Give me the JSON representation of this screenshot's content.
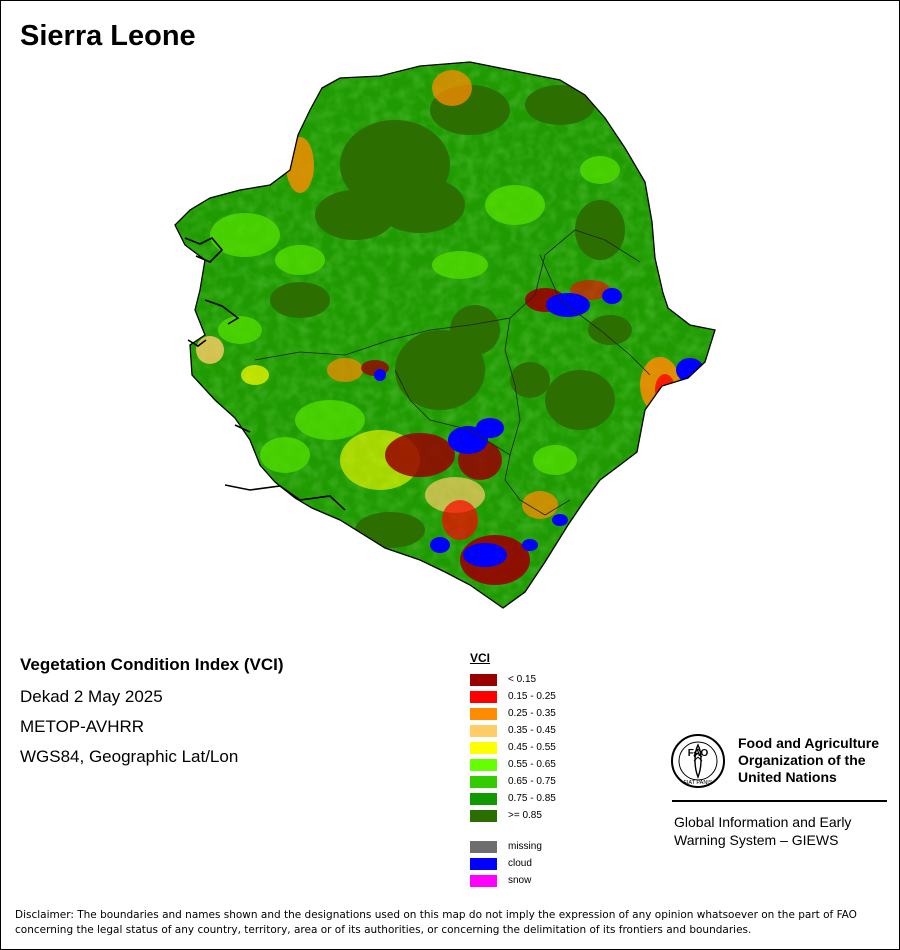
{
  "map": {
    "country": "Sierra Leone",
    "index_title": "Vegetation Condition Index (VCI)",
    "period": "Dekad 2 May 2025",
    "sensor": "METOP-AVHRR",
    "projection": "WGS84, Geographic Lat/Lon"
  },
  "legend": {
    "title": "VCI",
    "classes": [
      {
        "label": "< 0.15",
        "color": "#990000"
      },
      {
        "label": "0.15 - 0.25",
        "color": "#ff0000"
      },
      {
        "label": "0.25 - 0.35",
        "color": "#ff8c00"
      },
      {
        "label": "0.35 - 0.45",
        "color": "#ffcc66"
      },
      {
        "label": "0.45 - 0.55",
        "color": "#ffff00"
      },
      {
        "label": "0.55 - 0.65",
        "color": "#66ff00"
      },
      {
        "label": "0.65 - 0.75",
        "color": "#33cc00"
      },
      {
        "label": "0.75 - 0.85",
        "color": "#119900"
      },
      {
        "label": ">= 0.85",
        "color": "#2d6e00"
      }
    ],
    "other": [
      {
        "label": "missing",
        "color": "#6e6e6e"
      },
      {
        "label": "cloud",
        "color": "#0000ff"
      },
      {
        "label": "snow",
        "color": "#ff00ff"
      }
    ]
  },
  "logo": {
    "org_line1": "Food and Agriculture",
    "org_line2": "Organization of the",
    "org_line3": "United Nations",
    "emblem_text": "FAO",
    "motto": "FIAT PANIS",
    "system_line1": "Global Information and Early",
    "system_line2": "Warning System – GIEWS"
  },
  "disclaimer": "Disclaimer: The boundaries and names shown and the designations used on this map do not imply the expression of any opinion whatsoever on the part of FAO concerning the legal status of any country, territory, area or of its authorities, or concerning the delimitation of its frontiers and boundaries."
}
